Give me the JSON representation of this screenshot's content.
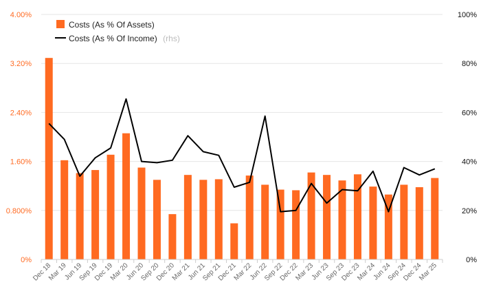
{
  "chart_data": {
    "type": "bar+line",
    "categories": [
      "Dec 18",
      "Mar 19",
      "Jun 19",
      "Sep 19",
      "Dec 19",
      "Mar 20",
      "Jun 20",
      "Sep 20",
      "Dec 20",
      "Mar 21",
      "Jun 21",
      "Sep 21",
      "Dec 21",
      "Mar 22",
      "Jun 22",
      "Sep 22",
      "Dec 22",
      "Mar 23",
      "Jun 23",
      "Sep 23",
      "Dec 23",
      "Mar 24",
      "Jun 24",
      "Sep 24",
      "Dec 24",
      "Mar 25"
    ],
    "series": [
      {
        "name": "Costs (As % Of Assets)",
        "type": "bar",
        "axis": "left",
        "color": "#ff6a21",
        "values": [
          3.29,
          1.62,
          1.41,
          1.46,
          1.71,
          2.06,
          1.5,
          1.3,
          0.74,
          1.38,
          1.3,
          1.31,
          0.59,
          1.37,
          1.22,
          1.14,
          1.13,
          1.42,
          1.38,
          1.29,
          1.39,
          1.19,
          1.06,
          1.22,
          1.18,
          1.33
        ]
      },
      {
        "name": "Costs (As % Of Income)",
        "name_suffix": "(rhs)",
        "type": "line",
        "axis": "right",
        "color": "#000000",
        "values": [
          55.5,
          49.0,
          34.0,
          41.5,
          45.5,
          65.5,
          40.0,
          39.5,
          40.5,
          50.5,
          44.0,
          42.5,
          29.5,
          31.5,
          58.5,
          19.5,
          20.0,
          31.0,
          23.0,
          28.5,
          28.0,
          36.0,
          19.5,
          37.5,
          34.5,
          37.0
        ]
      }
    ],
    "y_left": {
      "ylim": [
        0,
        4.0
      ],
      "ticks": [
        0,
        0.8,
        1.6,
        2.4,
        3.2,
        4.0
      ],
      "tick_labels": [
        "0%",
        "0.800%",
        "1.60%",
        "2.40%",
        "3.20%",
        "4.00%"
      ],
      "color": "#ff6a21"
    },
    "y_right": {
      "ylim": [
        0,
        100
      ],
      "ticks": [
        0,
        20,
        40,
        60,
        80,
        100
      ],
      "tick_labels": [
        "0%",
        "20%",
        "40%",
        "60%",
        "80%",
        "100%"
      ]
    },
    "grid": true,
    "legend_position": "top-left"
  }
}
